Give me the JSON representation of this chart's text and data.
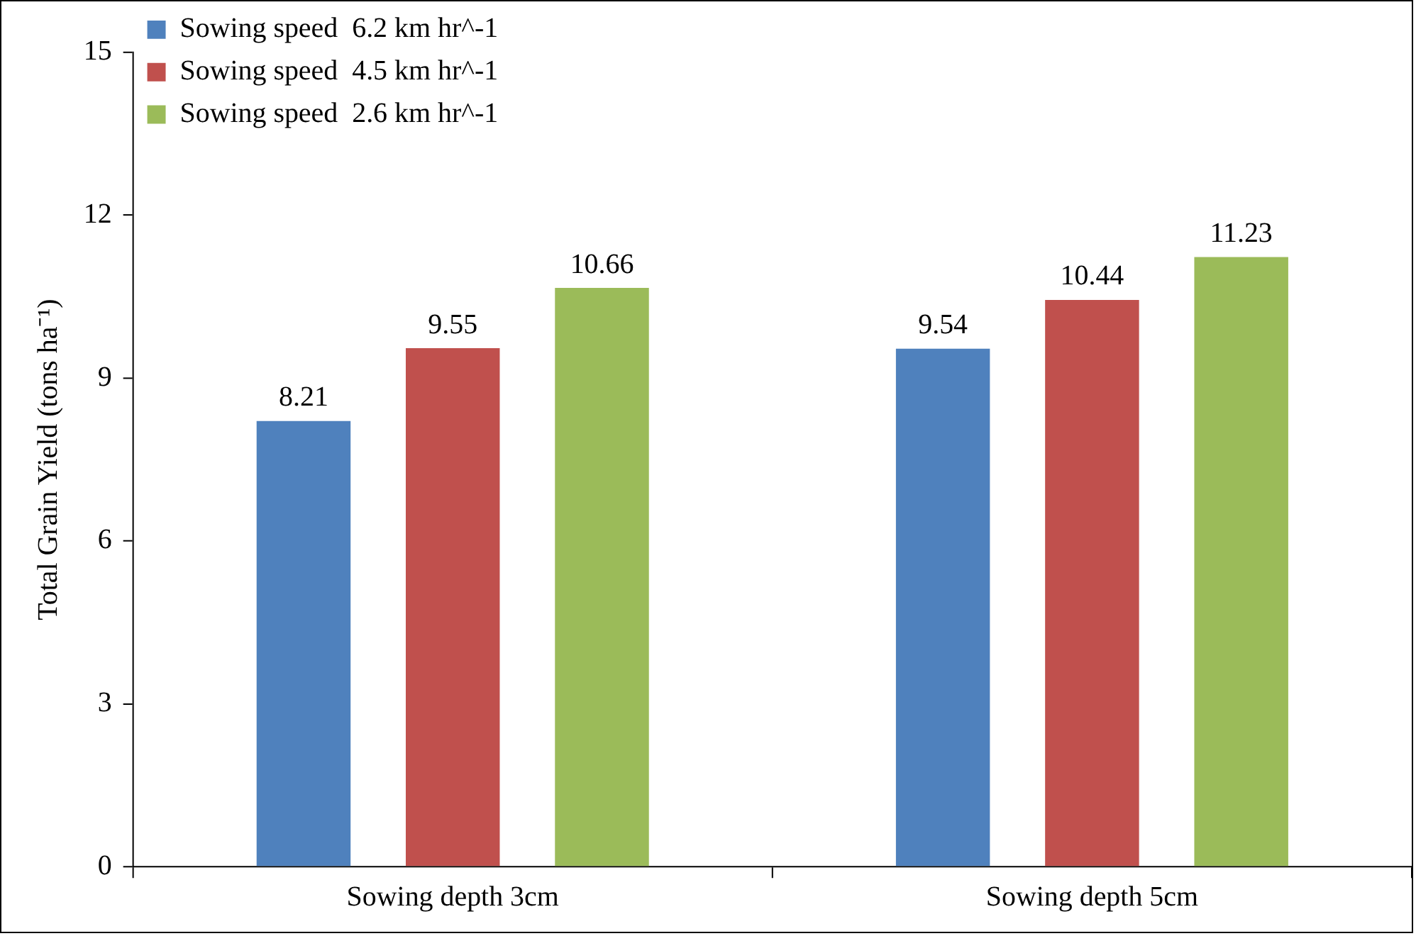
{
  "chart_data": {
    "type": "bar",
    "ylabel": "Total Grain Yield (tons ha⁻¹)",
    "categories": [
      "Sowing depth 3cm",
      "Sowing depth 5cm"
    ],
    "series": [
      {
        "name": "Sowing speed  6.2 km hr^-1",
        "color": "#4f81bd",
        "values": [
          8.21,
          9.54
        ]
      },
      {
        "name": "Sowing speed  4.5 km hr^-1",
        "color": "#c0504d",
        "values": [
          9.55,
          10.44
        ]
      },
      {
        "name": "Sowing speed  2.6 km hr^-1",
        "color": "#9bbb59",
        "values": [
          10.66,
          11.23
        ]
      }
    ],
    "ylim": [
      0,
      15
    ],
    "yticks": [
      0,
      3,
      6,
      9,
      12,
      15
    ],
    "data_labels": true,
    "legend": "top left"
  }
}
